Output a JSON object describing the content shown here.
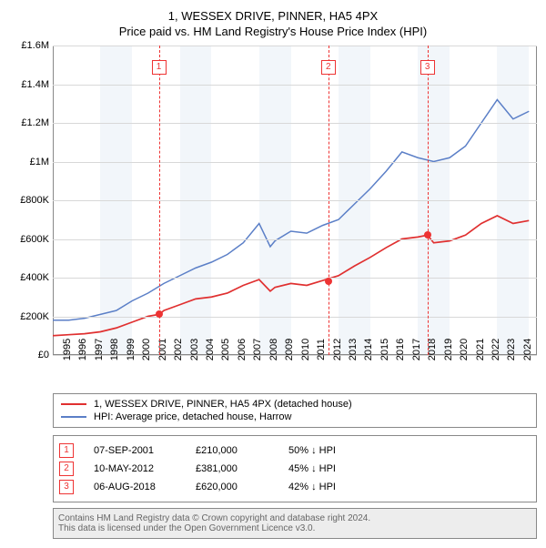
{
  "title": "1, WESSEX DRIVE, PINNER, HA5 4PX",
  "subtitle": "Price paid vs. HM Land Registry's House Price Index (HPI)",
  "chart": {
    "type": "line",
    "background_color": "#ffffff",
    "shaded_band_color": "#f2f6fa",
    "grid_color": "#d8d8d8",
    "border_color": "#888888",
    "x_min": 1995,
    "x_max": 2025.5,
    "y_min": 0,
    "y_max": 1600000,
    "y_ticks": [
      {
        "v": 0,
        "label": "£0"
      },
      {
        "v": 200000,
        "label": "£200K"
      },
      {
        "v": 400000,
        "label": "£400K"
      },
      {
        "v": 600000,
        "label": "£600K"
      },
      {
        "v": 800000,
        "label": "£800K"
      },
      {
        "v": 1000000,
        "label": "£1M"
      },
      {
        "v": 1200000,
        "label": "£1.2M"
      },
      {
        "v": 1400000,
        "label": "£1.4M"
      },
      {
        "v": 1600000,
        "label": "£1.6M"
      }
    ],
    "x_tick_years": [
      1995,
      1996,
      1997,
      1998,
      1999,
      2000,
      2001,
      2002,
      2003,
      2004,
      2005,
      2006,
      2007,
      2008,
      2009,
      2010,
      2011,
      2012,
      2013,
      2014,
      2015,
      2016,
      2017,
      2018,
      2019,
      2020,
      2021,
      2022,
      2023,
      2024
    ],
    "shaded_bands": [
      [
        1998,
        2000
      ],
      [
        2003,
        2005
      ],
      [
        2008,
        2010
      ],
      [
        2013,
        2015
      ],
      [
        2018,
        2020
      ],
      [
        2023,
        2025
      ]
    ],
    "series": [
      {
        "name": "hpi",
        "color": "#5b7fc7",
        "width": 1.5,
        "points": [
          [
            1995,
            180000
          ],
          [
            1996,
            180000
          ],
          [
            1997,
            190000
          ],
          [
            1998,
            210000
          ],
          [
            1999,
            230000
          ],
          [
            2000,
            280000
          ],
          [
            2001,
            320000
          ],
          [
            2002,
            370000
          ],
          [
            2003,
            410000
          ],
          [
            2004,
            450000
          ],
          [
            2005,
            480000
          ],
          [
            2006,
            520000
          ],
          [
            2007,
            580000
          ],
          [
            2008,
            680000
          ],
          [
            2008.7,
            560000
          ],
          [
            2009,
            590000
          ],
          [
            2010,
            640000
          ],
          [
            2011,
            630000
          ],
          [
            2012,
            670000
          ],
          [
            2013,
            700000
          ],
          [
            2014,
            780000
          ],
          [
            2015,
            860000
          ],
          [
            2016,
            950000
          ],
          [
            2017,
            1050000
          ],
          [
            2018,
            1020000
          ],
          [
            2019,
            1000000
          ],
          [
            2020,
            1020000
          ],
          [
            2021,
            1080000
          ],
          [
            2022,
            1200000
          ],
          [
            2023,
            1320000
          ],
          [
            2024,
            1220000
          ],
          [
            2025,
            1260000
          ]
        ]
      },
      {
        "name": "price_paid",
        "color": "#e03030",
        "width": 1.7,
        "points": [
          [
            1995,
            100000
          ],
          [
            1996,
            105000
          ],
          [
            1997,
            110000
          ],
          [
            1998,
            120000
          ],
          [
            1999,
            140000
          ],
          [
            2000,
            170000
          ],
          [
            2001,
            200000
          ],
          [
            2001.7,
            210000
          ],
          [
            2002,
            230000
          ],
          [
            2003,
            260000
          ],
          [
            2004,
            290000
          ],
          [
            2005,
            300000
          ],
          [
            2006,
            320000
          ],
          [
            2007,
            360000
          ],
          [
            2008,
            390000
          ],
          [
            2008.7,
            330000
          ],
          [
            2009,
            350000
          ],
          [
            2010,
            370000
          ],
          [
            2011,
            360000
          ],
          [
            2012,
            385000
          ],
          [
            2013,
            410000
          ],
          [
            2014,
            460000
          ],
          [
            2015,
            505000
          ],
          [
            2016,
            555000
          ],
          [
            2017,
            600000
          ],
          [
            2018,
            610000
          ],
          [
            2018.6,
            620000
          ],
          [
            2019,
            580000
          ],
          [
            2020,
            590000
          ],
          [
            2021,
            620000
          ],
          [
            2022,
            680000
          ],
          [
            2023,
            720000
          ],
          [
            2024,
            680000
          ],
          [
            2025,
            695000
          ]
        ]
      }
    ],
    "event_markers": [
      {
        "n": "1",
        "x": 2001.68,
        "y": 210000
      },
      {
        "n": "2",
        "x": 2012.36,
        "y": 381000
      },
      {
        "n": "3",
        "x": 2018.6,
        "y": 620000
      }
    ]
  },
  "legend": {
    "items": [
      {
        "color": "#e03030",
        "label": "1, WESSEX DRIVE, PINNER, HA5 4PX (detached house)"
      },
      {
        "color": "#5b7fc7",
        "label": "HPI: Average price, detached house, Harrow"
      }
    ]
  },
  "events": [
    {
      "n": "1",
      "date": "07-SEP-2001",
      "price": "£210,000",
      "diff": "50% ↓ HPI"
    },
    {
      "n": "2",
      "date": "10-MAY-2012",
      "price": "£381,000",
      "diff": "45% ↓ HPI"
    },
    {
      "n": "3",
      "date": "06-AUG-2018",
      "price": "£620,000",
      "diff": "42% ↓ HPI"
    }
  ],
  "footer_line1": "Contains HM Land Registry data © Crown copyright and database right 2024.",
  "footer_line2": "This data is licensed under the Open Government Licence v3.0."
}
